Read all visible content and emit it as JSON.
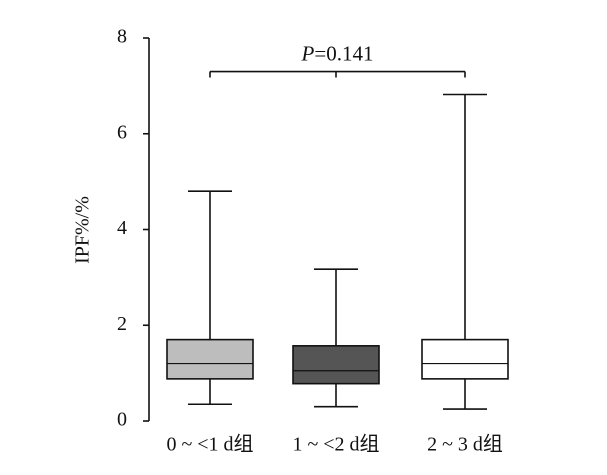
{
  "chart_data": {
    "type": "box",
    "xlabel": "",
    "ylabel": "IPF%/%",
    "ylim": [
      0,
      8
    ],
    "yticks": [
      0,
      2,
      4,
      6,
      8
    ],
    "grid": false,
    "categories": [
      "0 ~ <1 d组",
      "1 ~ <2 d组",
      "2 ~ 3 d组"
    ],
    "boxes": [
      {
        "category": "0 ~ <1 d组",
        "min": 0.35,
        "q1": 0.88,
        "median": 1.2,
        "q3": 1.7,
        "max": 4.8,
        "fill": "#bdbdbd"
      },
      {
        "category": "1 ~ <2 d组",
        "min": 0.3,
        "q1": 0.78,
        "median": 1.05,
        "q3": 1.57,
        "max": 3.17,
        "fill": "#555555"
      },
      {
        "category": "2 ~ 3 d组",
        "min": 0.25,
        "q1": 0.88,
        "median": 1.2,
        "q3": 1.7,
        "max": 6.82,
        "fill": "#ffffff"
      }
    ],
    "annotation": {
      "p_symbol": "P",
      "p_value_text": "=0.141",
      "bracket_level": 7.3
    }
  }
}
